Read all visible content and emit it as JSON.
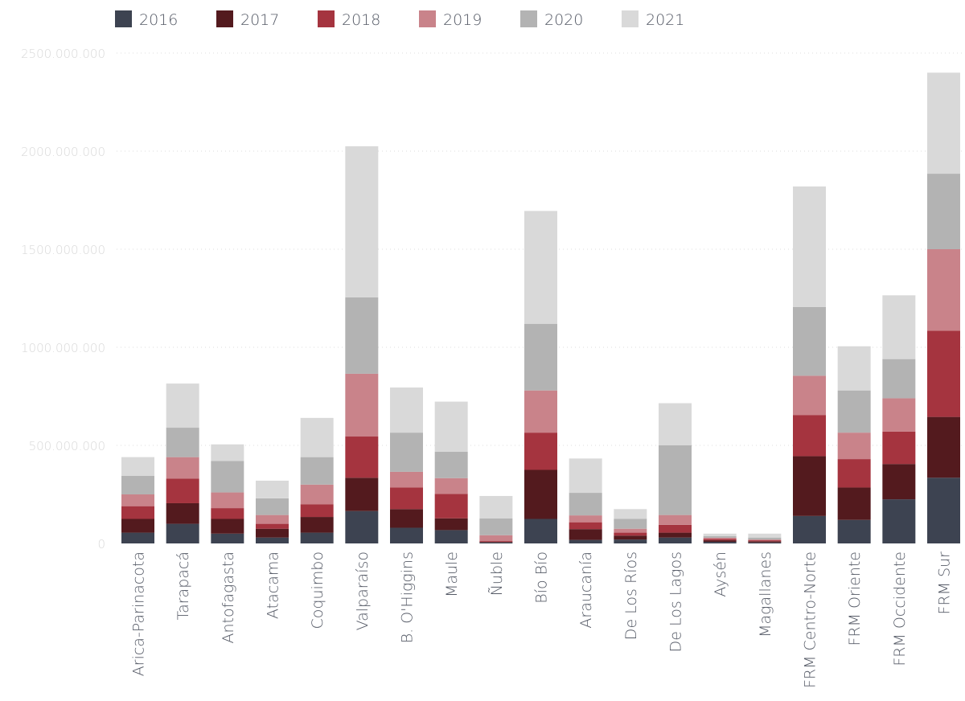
{
  "chart_data": {
    "type": "bar",
    "stacked": true,
    "title": "",
    "xlabel": "",
    "ylabel": "",
    "ylim": [
      0,
      2500000000
    ],
    "yticks": [
      0,
      500000000,
      1000000000,
      1500000000,
      2000000000,
      2500000000
    ],
    "ytick_labels": [
      "0",
      "500.000.000",
      "1000.000.000",
      "1500.000.000",
      "2000.000.000",
      "2500.000.000"
    ],
    "grid": true,
    "legend_position": "top-left",
    "categories": [
      "Arica-Parinacota",
      "Tarapacá",
      "Antofagasta",
      "Atacama",
      "Coquimbo",
      "Valparaíso",
      "B. O'Higgins",
      "Maule",
      "Ñuble",
      "Bío Bío",
      "Araucanía",
      "De Los Ríos",
      "De Los Lagos",
      "Aysén",
      "Magallanes",
      "FRM Centro-Norte",
      "FRM Oriente",
      "FRM Occidente",
      "FRM Sur"
    ],
    "series": [
      {
        "name": "2016",
        "color": "#3d4351",
        "values": [
          55000000,
          100000000,
          50000000,
          30000000,
          55000000,
          165000000,
          80000000,
          68000000,
          5000000,
          125000000,
          18000000,
          20000000,
          30000000,
          8000000,
          5000000,
          140000000,
          120000000,
          225000000,
          335000000
        ]
      },
      {
        "name": "2017",
        "color": "#531a1e",
        "values": [
          70000000,
          105000000,
          75000000,
          45000000,
          80000000,
          170000000,
          95000000,
          60000000,
          3000000,
          250000000,
          55000000,
          20000000,
          25000000,
          8000000,
          6000000,
          305000000,
          165000000,
          180000000,
          310000000
        ]
      },
      {
        "name": "2018",
        "color": "#a5343f",
        "values": [
          65000000,
          125000000,
          55000000,
          25000000,
          65000000,
          210000000,
          110000000,
          125000000,
          4000000,
          190000000,
          35000000,
          15000000,
          40000000,
          7000000,
          5000000,
          210000000,
          145000000,
          165000000,
          440000000
        ]
      },
      {
        "name": "2019",
        "color": "#c9838a",
        "values": [
          60000000,
          110000000,
          80000000,
          45000000,
          100000000,
          320000000,
          80000000,
          80000000,
          30000000,
          215000000,
          35000000,
          20000000,
          50000000,
          6000000,
          4000000,
          200000000,
          135000000,
          170000000,
          415000000
        ]
      },
      {
        "name": "2020",
        "color": "#b3b3b3",
        "values": [
          95000000,
          150000000,
          160000000,
          85000000,
          140000000,
          390000000,
          200000000,
          135000000,
          85000000,
          340000000,
          115000000,
          50000000,
          355000000,
          8000000,
          10000000,
          350000000,
          215000000,
          200000000,
          385000000
        ]
      },
      {
        "name": "2021",
        "color": "#d9d9d9",
        "values": [
          95000000,
          225000000,
          85000000,
          90000000,
          200000000,
          770000000,
          230000000,
          255000000,
          115000000,
          575000000,
          175000000,
          50000000,
          215000000,
          13000000,
          20000000,
          615000000,
          225000000,
          325000000,
          515000000
        ]
      }
    ]
  }
}
